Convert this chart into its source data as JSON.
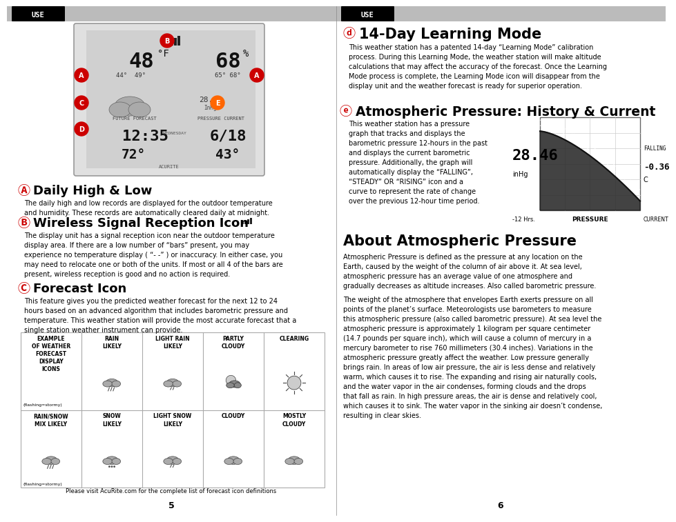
{
  "white": "#ffffff",
  "black": "#000000",
  "gray_header": "#bbbbbb",
  "page_width": 9.54,
  "page_height": 7.38,
  "left_header": "USE",
  "right_header": "USE",
  "section_A_title": "Daily High & Low",
  "section_A_body": "The daily high and low records are displayed for the outdoor temperature\nand humidity. These records are automatically cleared daily at midnight.",
  "section_B_title": "Wireless Signal Reception Icon",
  "section_B_body": "The display unit has a signal reception icon near the outdoor temperature\ndisplay area. If there are a low number of “bars” present, you may\nexperience no temperature display ( “- -” ) or inaccuracy. In either case, you\nmay need to relocate one or both of the units. If most or all 4 of the bars are\npresent, wireless reception is good and no action is required.",
  "section_C_title": "Forecast Icon",
  "section_C_body": "This feature gives you the predicted weather forecast for the next 12 to 24\nhours based on an advanced algorithm that includes barometric pressure and\ntemperature. This weather station will provide the most accurate forecast that a\nsingle station weather instrument can provide.",
  "forecast_caption": "Please visit AcuRite.com for the complete list of forecast icon definitions",
  "page_num_left": "5",
  "section_D_title": "14-Day Learning Mode",
  "section_D_body": "This weather station has a patented 14-day “Learning Mode” calibration\nprocess. During this Learning Mode, the weather station will make altitude\ncalculations that may affect the accuracy of the forecast. Once the Learning\nMode process is complete, the Learning Mode icon will disappear from the\ndisplay unit and the weather forecast is ready for superior operation.",
  "section_E_title": "Atmospheric Pressure: History & Current",
  "section_E_body_left": "This weather station has a pressure\ngraph that tracks and displays the\nbarometric pressure 12-hours in the past\nand displays the current barometric\npressure. Additionally, the graph will\nautomatically display the “FALLING”,\n“STEADY” OR “RISING” icon and a\ncurve to represent the rate of change\nover the previous 12-hour time period.",
  "section_F_title": "About Atmospheric Pressure",
  "section_F_body1": "Atmospheric Pressure is defined as the pressure at any location on the\nEarth, caused by the weight of the column of air above it. At sea level,\natmospheric pressure has an average value of one atmosphere and\ngradually decreases as altitude increases. Also called barometric pressure.",
  "section_F_body2": "The weight of the atmosphere that envelopes Earth exerts pressure on all\npoints of the planet’s surface. Meteorologists use barometers to measure\nthis atmospheric pressure (also called barometric pressure). At sea level the\natmospheric pressure is approximately 1 kilogram per square centimeter\n(14.7 pounds per square inch), which will cause a column of mercury in a\nmercury barometer to rise 760 millimeters (30.4 inches). Variations in the\natmospheric pressure greatly affect the weather. Low pressure generally\nbrings rain. In areas of low air pressure, the air is less dense and relatively\nwarm, which causes it to rise. The expanding and rising air naturally cools,\nand the water vapor in the air condenses, forming clouds and the drops\nthat fall as rain. In high pressure areas, the air is dense and relatively cool,\nwhich causes it to sink. The water vapor in the sinking air doesn’t condense,\nresulting in clear skies.",
  "page_num_right": "6",
  "pressure_value": "28.46",
  "pressure_unit": "inHg",
  "pressure_label": "PRESSURE",
  "pressure_time": "-12 Hrs.",
  "pressure_current": "CURRENT",
  "pressure_falling": "FALLING",
  "pressure_current_val": "-0.36",
  "pressure_c": "C",
  "row1_labels": [
    "EXAMPLE\nOF WEATHER\nFORECAST\nDISPLAY\nICONS",
    "RAIN\nLIKELY",
    "LIGHT RAIN\nLIKELY",
    "PARTLY\nCLOUDY",
    "CLEARING"
  ],
  "row2_labels": [
    "RAIN/SNOW\nMIX LIKELY",
    "SNOW\nLIKELY",
    "LIGHT SNOW\nLIKELY",
    "CLOUDY",
    "MOSTLY\nCLOUDY"
  ]
}
